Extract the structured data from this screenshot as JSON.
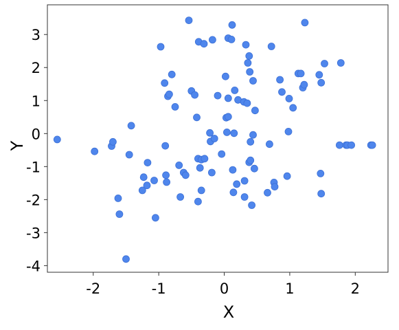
{
  "chart_data": {
    "type": "scatter",
    "title": "",
    "xlabel": "X",
    "ylabel": "Y",
    "xlim": [
      -2.7,
      2.5
    ],
    "ylim": [
      -4.2,
      3.9
    ],
    "xticks": [
      -2,
      -1,
      0,
      1,
      2
    ],
    "yticks": [
      -4,
      -3,
      -2,
      -1,
      0,
      1,
      2,
      3
    ],
    "xtick_labels": [
      "-2",
      "-1",
      "0",
      "1",
      "2"
    ],
    "ytick_labels": [
      "-4",
      "-3",
      "-2",
      "-1",
      "0",
      "1",
      "2",
      "3"
    ],
    "grid": false,
    "legend": "none",
    "marker_color": "#4f86ec",
    "marker_edge_color": "#3c70d6",
    "series": [
      {
        "x": [
          -2.55,
          -1.98,
          -1.72,
          -1.7,
          -1.62,
          -1.6,
          -1.5,
          -1.45,
          -1.42,
          -1.25,
          -1.23,
          -1.18,
          -1.17,
          -1.07,
          -1.05,
          -0.97,
          -0.91,
          -0.9,
          -0.89,
          -0.88,
          -0.86,
          -0.84,
          -0.8,
          -0.75,
          -0.69,
          -0.67,
          -0.62,
          -0.59,
          -0.54,
          -0.5,
          -0.45,
          -0.42,
          -0.4,
          -0.4,
          -0.39,
          -0.37,
          -0.35,
          -0.35,
          -0.31,
          -0.3,
          -0.22,
          -0.21,
          -0.19,
          -0.18,
          -0.15,
          -0.1,
          -0.04,
          0.02,
          0.03,
          0.04,
          0.06,
          0.06,
          0.06,
          0.11,
          0.12,
          0.13,
          0.14,
          0.15,
          0.16,
          0.19,
          0.21,
          0.3,
          0.31,
          0.31,
          0.33,
          0.35,
          0.36,
          0.38,
          0.38,
          0.39,
          0.4,
          0.4,
          0.42,
          0.44,
          0.44,
          0.46,
          0.47,
          0.66,
          0.69,
          0.72,
          0.76,
          0.77,
          0.85,
          0.88,
          0.96,
          0.98,
          0.99,
          1.05,
          1.13,
          1.17,
          1.2,
          1.22,
          1.23,
          1.45,
          1.47,
          1.48,
          1.48,
          1.53,
          1.76,
          1.78,
          1.86,
          1.88,
          1.94,
          2.24,
          2.26
        ],
        "y": [
          -0.18,
          -0.54,
          -0.38,
          -0.25,
          -1.96,
          -2.44,
          -3.8,
          -0.64,
          0.24,
          -1.72,
          -1.32,
          -1.57,
          -0.88,
          -1.42,
          -2.55,
          2.63,
          1.53,
          -0.37,
          -1.26,
          -1.47,
          1.13,
          1.19,
          1.79,
          0.81,
          -0.96,
          -1.92,
          -1.18,
          -1.26,
          3.43,
          1.29,
          1.17,
          0.49,
          -2.06,
          -0.76,
          2.78,
          -1.04,
          -0.79,
          -1.72,
          2.72,
          -0.76,
          0.02,
          -0.24,
          -1.18,
          2.84,
          -0.15,
          1.15,
          -0.62,
          1.73,
          0.48,
          0.04,
          2.89,
          0.51,
          1.07,
          2.85,
          3.29,
          -1.1,
          -1.78,
          0.01,
          1.31,
          -1.53,
          1.02,
          0.96,
          -1.43,
          -1.92,
          2.69,
          0.92,
          2.14,
          2.35,
          -0.87,
          1.87,
          -0.25,
          -0.81,
          -2.17,
          1.6,
          -0.04,
          -1.06,
          0.7,
          -1.79,
          -0.32,
          2.64,
          -1.48,
          -1.61,
          1.63,
          1.26,
          -1.29,
          0.06,
          1.06,
          0.78,
          1.82,
          1.82,
          1.39,
          1.48,
          3.36,
          1.78,
          -1.21,
          -1.82,
          1.54,
          2.12,
          -0.35,
          2.14,
          -0.35,
          -0.35,
          -0.35,
          -0.35,
          -0.35
        ],
        "_note_removed": ""
      }
    ]
  }
}
